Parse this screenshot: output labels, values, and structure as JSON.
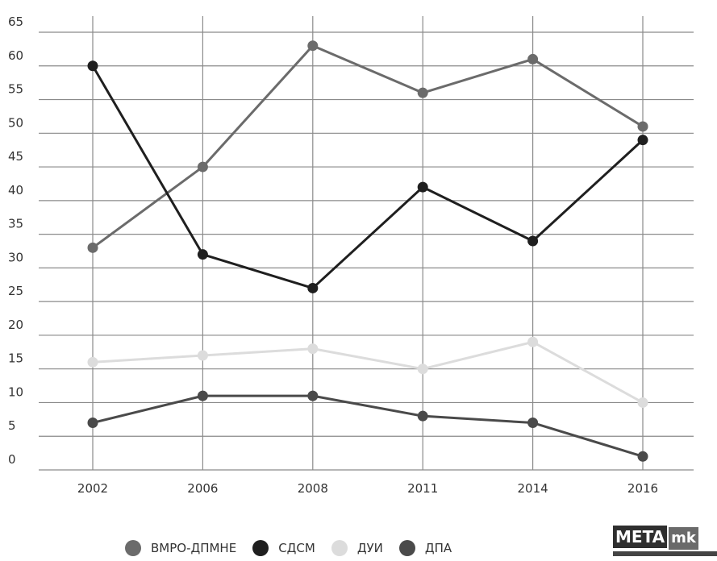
{
  "chart_data": {
    "type": "line",
    "title": "",
    "xlabel": "",
    "ylabel": "",
    "categories": [
      "2002",
      "2006",
      "2008",
      "2011",
      "2014",
      "2016"
    ],
    "ylim": [
      0,
      65
    ],
    "yticks": [
      "0",
      "5",
      "10",
      "15",
      "20",
      "25",
      "30",
      "35",
      "40",
      "45",
      "50",
      "55",
      "60",
      "65"
    ],
    "grid": true,
    "legend_position": "bottom",
    "series": [
      {
        "name": "ВМРО-ДПМНЕ",
        "color": "#6b6b6b",
        "values": [
          33,
          45,
          63,
          56,
          61,
          51
        ]
      },
      {
        "name": "СДСМ",
        "color": "#1f1f1f",
        "values": [
          60,
          32,
          27,
          42,
          34,
          49
        ]
      },
      {
        "name": "ДУИ",
        "color": "#dcdcdc",
        "values": [
          16,
          17,
          18,
          15,
          19,
          10
        ]
      },
      {
        "name": "ДПА",
        "color": "#4a4a4a",
        "values": [
          7,
          11,
          11,
          8,
          7,
          2
        ]
      }
    ]
  },
  "logo": {
    "part1": "META",
    "part2": "mk"
  }
}
